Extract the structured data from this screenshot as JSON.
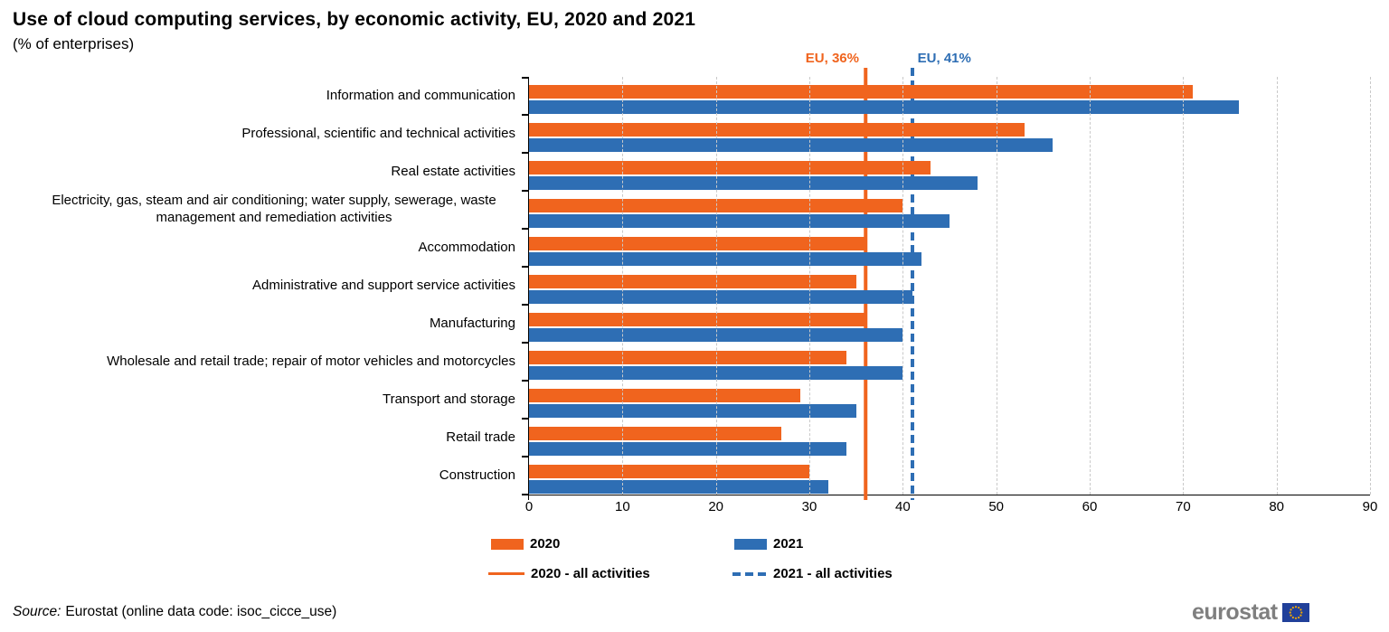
{
  "title": "Use of cloud computing services, by economic activity, EU, 2020 and 2021",
  "subtitle": "(% of enterprises)",
  "colors": {
    "orange": "#F0641E",
    "blue": "#2E6EB4",
    "grid": "#C9C9C9",
    "axis": "#000000",
    "logo_gray": "#7F7F7F",
    "flag_blue": "#21409A",
    "star_yellow": "#F5A800"
  },
  "reference_lines": [
    {
      "label": "EU, 36%",
      "value": 36,
      "series": "2020",
      "style": "solid"
    },
    {
      "label": "EU, 41%",
      "value": 41,
      "series": "2021",
      "style": "dashed"
    }
  ],
  "legend": {
    "items": [
      {
        "label": "2020",
        "swatch": "box-orange"
      },
      {
        "label": "2021",
        "swatch": "box-blue"
      },
      {
        "label": "2020 - all activities",
        "swatch": "line-orange-solid"
      },
      {
        "label": "2021 - all activities",
        "swatch": "line-blue-dashed"
      }
    ]
  },
  "chart_data": {
    "type": "bar",
    "orientation": "horizontal",
    "title": "Use of cloud computing services, by economic activity, EU, 2020 and 2021",
    "subtitle": "(% of enterprises)",
    "xlabel": "",
    "ylabel": "",
    "xlim": [
      0,
      90
    ],
    "xticks": [
      0,
      10,
      20,
      30,
      40,
      50,
      60,
      70,
      80,
      90
    ],
    "grid": "vertical-dashed",
    "legend_position": "bottom",
    "categories": [
      "Information and communication",
      "Professional, scientific and technical activities",
      "Real estate activities",
      "Electricity, gas, steam and air conditioning; water supply, sewerage, waste management and remediation activities",
      "Accommodation",
      "Administrative and support service activities",
      "Manufacturing",
      "Wholesale and retail trade; repair of motor vehicles and motorcycles",
      "Transport and storage",
      "Retail trade",
      "Construction"
    ],
    "series": [
      {
        "name": "2020",
        "color": "#F0641E",
        "values": [
          71,
          53,
          43,
          40,
          36,
          35,
          36,
          34,
          29,
          27,
          30
        ]
      },
      {
        "name": "2021",
        "color": "#2E6EB4",
        "values": [
          76,
          56,
          48,
          45,
          42,
          41,
          40,
          40,
          35,
          34,
          32
        ]
      }
    ],
    "reference_lines": [
      {
        "label": "EU, 36%",
        "value": 36
      },
      {
        "label": "EU, 41%",
        "value": 41
      }
    ]
  },
  "source": {
    "prefix": "Source:",
    "text": "Eurostat (online data code: isoc_cicce_use)"
  },
  "logo": {
    "text": "eurostat"
  }
}
